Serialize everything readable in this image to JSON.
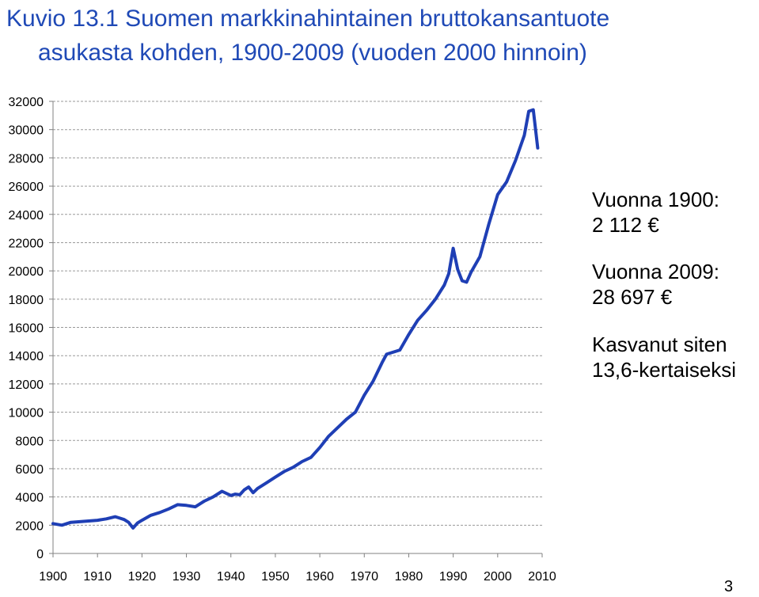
{
  "title": {
    "line1": "Kuvio 13.1 Suomen markkinahintainen bruttokansantuote",
    "line2": "asukasta kohden, 1900-2009 (vuoden 2000 hinnoin)"
  },
  "annotations": {
    "year1900_label": "Vuonna 1900:",
    "year1900_value": "2 112 €",
    "year2009_label": "Vuonna 2009:",
    "year2009_value": "28 697 €",
    "growth_label": "Kasvanut siten",
    "growth_value": "13,6-kertaiseksi"
  },
  "page_number": "3",
  "chart_data": {
    "type": "line",
    "title": "Kuvio 13.1 Suomen markkinahintainen bruttokansantuote asukasta kohden, 1900-2009 (vuoden 2000 hinnoin)",
    "xlabel": "",
    "ylabel": "",
    "xlim": [
      1900,
      2010
    ],
    "ylim": [
      0,
      32000
    ],
    "x_ticks": [
      1900,
      1910,
      1920,
      1930,
      1940,
      1950,
      1960,
      1970,
      1980,
      1990,
      2000,
      2010
    ],
    "y_ticks": [
      0,
      2000,
      4000,
      6000,
      8000,
      10000,
      12000,
      14000,
      16000,
      18000,
      20000,
      22000,
      24000,
      26000,
      28000,
      30000,
      32000
    ],
    "grid": "horizontal dashed",
    "line_color": "#1f3fb5",
    "series": [
      {
        "values": [
          [
            1900,
            2112
          ],
          [
            1902,
            2000
          ],
          [
            1904,
            2200
          ],
          [
            1906,
            2250
          ],
          [
            1908,
            2300
          ],
          [
            1910,
            2350
          ],
          [
            1912,
            2450
          ],
          [
            1914,
            2600
          ],
          [
            1915,
            2500
          ],
          [
            1916,
            2400
          ],
          [
            1917,
            2200
          ],
          [
            1918,
            1800
          ],
          [
            1919,
            2150
          ],
          [
            1920,
            2350
          ],
          [
            1922,
            2700
          ],
          [
            1924,
            2900
          ],
          [
            1926,
            3150
          ],
          [
            1928,
            3450
          ],
          [
            1930,
            3400
          ],
          [
            1932,
            3300
          ],
          [
            1934,
            3700
          ],
          [
            1936,
            4000
          ],
          [
            1938,
            4400
          ],
          [
            1940,
            4100
          ],
          [
            1941,
            4200
          ],
          [
            1942,
            4150
          ],
          [
            1943,
            4500
          ],
          [
            1944,
            4700
          ],
          [
            1945,
            4300
          ],
          [
            1946,
            4600
          ],
          [
            1948,
            5000
          ],
          [
            1950,
            5400
          ],
          [
            1952,
            5800
          ],
          [
            1954,
            6100
          ],
          [
            1956,
            6500
          ],
          [
            1958,
            6800
          ],
          [
            1960,
            7500
          ],
          [
            1962,
            8300
          ],
          [
            1964,
            8900
          ],
          [
            1966,
            9500
          ],
          [
            1968,
            10000
          ],
          [
            1970,
            11200
          ],
          [
            1972,
            12200
          ],
          [
            1974,
            13500
          ],
          [
            1975,
            14100
          ],
          [
            1976,
            14200
          ],
          [
            1978,
            14400
          ],
          [
            1980,
            15500
          ],
          [
            1982,
            16500
          ],
          [
            1984,
            17200
          ],
          [
            1986,
            18000
          ],
          [
            1988,
            19000
          ],
          [
            1989,
            19800
          ],
          [
            1990,
            21600
          ],
          [
            1991,
            20100
          ],
          [
            1992,
            19300
          ],
          [
            1993,
            19200
          ],
          [
            1994,
            19900
          ],
          [
            1996,
            21000
          ],
          [
            1998,
            23300
          ],
          [
            2000,
            25400
          ],
          [
            2002,
            26300
          ],
          [
            2004,
            27800
          ],
          [
            2006,
            29600
          ],
          [
            2007,
            31300
          ],
          [
            2008,
            31400
          ],
          [
            2009,
            28697
          ]
        ]
      }
    ]
  }
}
